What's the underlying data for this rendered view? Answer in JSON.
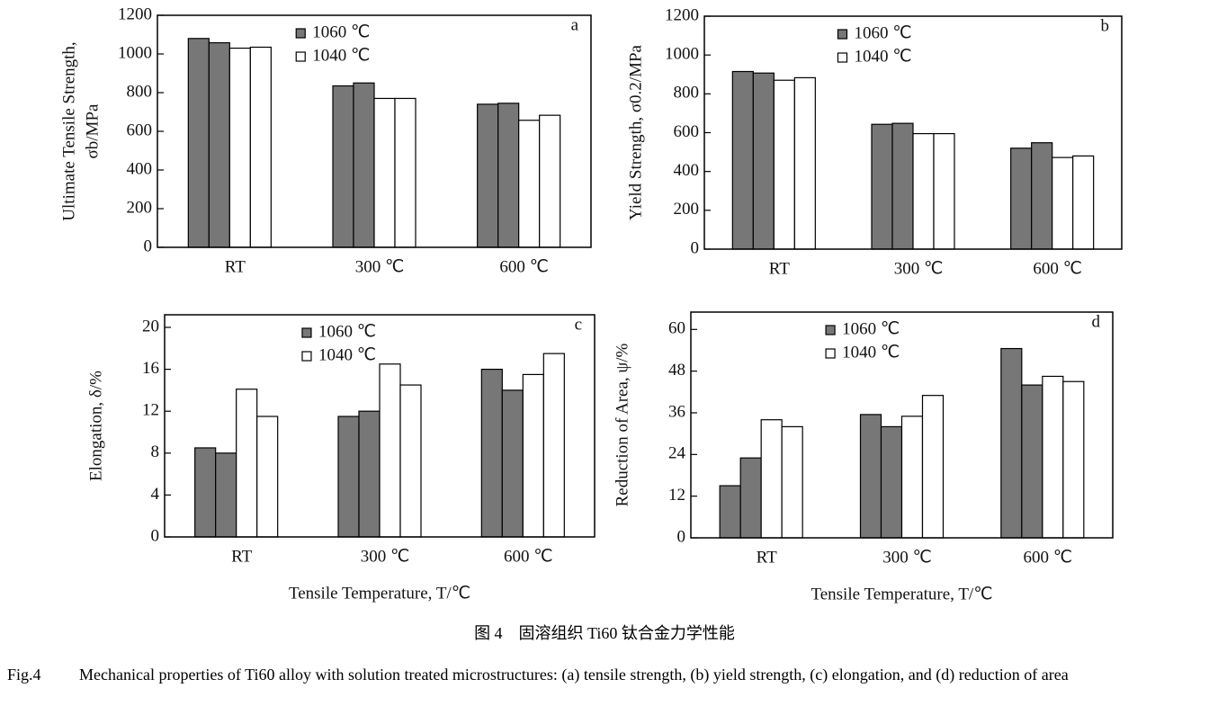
{
  "chart_data": [
    {
      "type": "bar",
      "label": "a",
      "ylabel": [
        "Ultimate Tensile Strength,",
        "σb/MPa"
      ],
      "categories": [
        "RT",
        "300 ℃",
        "600 ℃"
      ],
      "series": [
        {
          "name": "1060 ℃",
          "color": "#777777",
          "values": [
            [
              1080,
              1058
            ],
            [
              835,
              850
            ],
            [
              740,
              745
            ]
          ]
        },
        {
          "name": "1040 ℃",
          "color": "#ffffff",
          "values": [
            [
              1030,
              1035
            ],
            [
              770,
              770
            ],
            [
              657,
              683
            ]
          ]
        }
      ],
      "ylim": [
        0,
        1200
      ],
      "yticks": [
        0,
        200,
        400,
        600,
        800,
        1000,
        1200
      ],
      "legend": "upper center"
    },
    {
      "type": "bar",
      "label": "b",
      "ylabel": [
        "Yield Strength, σ0.2/MPa"
      ],
      "categories": [
        "RT",
        "300 ℃",
        "600 ℃"
      ],
      "series": [
        {
          "name": "1060 ℃",
          "color": "#777777",
          "values": [
            [
              915,
              907
            ],
            [
              643,
              648
            ],
            [
              520,
              548
            ]
          ]
        },
        {
          "name": "1040 ℃",
          "color": "#ffffff",
          "values": [
            [
              870,
              883
            ],
            [
              595,
              595
            ],
            [
              472,
              480
            ]
          ]
        }
      ],
      "ylim": [
        0,
        1200
      ],
      "yticks": [
        0,
        200,
        400,
        600,
        800,
        1000,
        1200
      ],
      "legend": "upper center"
    },
    {
      "type": "bar",
      "label": "c",
      "ylabel": [
        "Elongation, δ/%"
      ],
      "xlabel": "Tensile Temperature, T/℃",
      "categories": [
        "RT",
        "300 ℃",
        "600 ℃"
      ],
      "series": [
        {
          "name": "1060 ℃",
          "color": "#777777",
          "values": [
            [
              8.5,
              8.0
            ],
            [
              11.5,
              12.0
            ],
            [
              16.0,
              14.0
            ]
          ]
        },
        {
          "name": "1040 ℃",
          "color": "#ffffff",
          "values": [
            [
              14.1,
              11.5
            ],
            [
              16.5,
              14.5
            ],
            [
              15.5,
              17.5
            ]
          ]
        }
      ],
      "ylim": [
        0,
        21.2
      ],
      "yticks": [
        0,
        4,
        8,
        12,
        16,
        20
      ],
      "legend": "upper center"
    },
    {
      "type": "bar",
      "label": "d",
      "ylabel": [
        "Reduction of Area, ψ/%"
      ],
      "xlabel": "Tensile Temperature, T/℃",
      "categories": [
        "RT",
        "300 ℃",
        "600 ℃"
      ],
      "series": [
        {
          "name": "1060 ℃",
          "color": "#777777",
          "values": [
            [
              15,
              23
            ],
            [
              35.5,
              32
            ],
            [
              54.5,
              44
            ]
          ]
        },
        {
          "name": "1040 ℃",
          "color": "#ffffff",
          "values": [
            [
              34,
              32
            ],
            [
              35,
              41
            ],
            [
              46.5,
              45
            ]
          ]
        }
      ],
      "ylim": [
        0,
        65
      ],
      "yticks": [
        0,
        12,
        24,
        36,
        48,
        60
      ],
      "legend": "upper center"
    }
  ],
  "caption": {
    "cn": "图 4　固溶组织 Ti60 钛合金力学性能",
    "label": "Fig.4",
    "text": "Mechanical properties of Ti60 alloy with solution treated microstructures: (a) tensile strength, (b) yield strength, (c) elongation, and (d) reduction of area"
  }
}
